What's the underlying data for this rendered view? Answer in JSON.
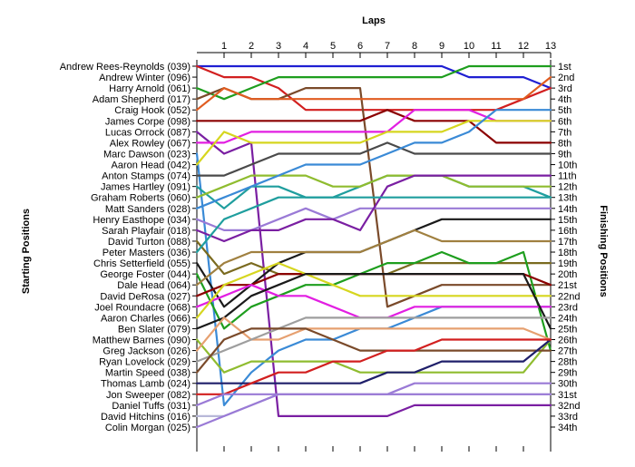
{
  "chart_data": {
    "type": "line",
    "title": "",
    "xlabel": "Laps",
    "ylabel_left": "Starting Positions",
    "ylabel_right": "Finishing Positions",
    "x": [
      0,
      1,
      2,
      3,
      4,
      5,
      6,
      7,
      8,
      9,
      10,
      11,
      12,
      13
    ],
    "x_tick_labels": [
      "1",
      "2",
      "3",
      "4",
      "5",
      "6",
      "7",
      "8",
      "9",
      "10",
      "11",
      "12",
      "13"
    ],
    "finishing_labels": [
      "1st",
      "2nd",
      "3rd",
      "4th",
      "5th",
      "6th",
      "7th",
      "8th",
      "9th",
      "10th",
      "11th",
      "12th",
      "13th",
      "14th",
      "15th",
      "16th",
      "17th",
      "18th",
      "19th",
      "20th",
      "21st",
      "22nd",
      "23rd",
      "24th",
      "25th",
      "26th",
      "27th",
      "28th",
      "29th",
      "30th",
      "31st",
      "32nd",
      "33rd",
      "34th"
    ],
    "ylim": [
      1,
      34
    ],
    "grid": false,
    "series": [
      {
        "name": "Andrew Rees-Reynolds (039)",
        "color": "#1f1fd2",
        "values": [
          1,
          1,
          1,
          1,
          1,
          1,
          1,
          1,
          1,
          1,
          2,
          2,
          2,
          3
        ]
      },
      {
        "name": "Andrew Winter (096)",
        "color": "#d21f1f",
        "values": [
          1,
          2,
          2,
          3,
          5,
          5,
          5,
          5,
          5,
          5,
          5,
          5,
          4,
          3
        ]
      },
      {
        "name": "Harry Arnold (061)",
        "color": "#1e9e1e",
        "values": [
          3,
          4,
          3,
          2,
          2,
          2,
          2,
          2,
          2,
          2,
          1,
          1,
          1,
          1
        ]
      },
      {
        "name": "Adam Shepherd (017)",
        "color": "#7a4a2a",
        "values": [
          4,
          3,
          4,
          4,
          3,
          3,
          3,
          23,
          22,
          21,
          21,
          21,
          21,
          21
        ]
      },
      {
        "name": "Craig Hook (052)",
        "color": "#e05c20",
        "values": [
          5,
          3,
          4,
          4,
          4,
          4,
          4,
          4,
          4,
          4,
          4,
          4,
          4,
          2
        ]
      },
      {
        "name": "James Corpe (098)",
        "color": "#8b0000",
        "values": [
          6,
          6,
          6,
          6,
          6,
          6,
          6,
          5,
          6,
          6,
          6,
          8,
          8,
          8
        ]
      },
      {
        "name": "Lucas Orrock (087)",
        "color": "#7a1fa2",
        "values": [
          7,
          9,
          8,
          33,
          33,
          33,
          33,
          33,
          32,
          32,
          32,
          32,
          32,
          32
        ]
      },
      {
        "name": "Alex Rowley (067)",
        "color": "#e21fe2",
        "values": [
          8,
          8,
          7,
          7,
          7,
          7,
          7,
          7,
          5,
          5,
          5,
          6,
          6,
          6
        ]
      },
      {
        "name": "Marc Dawson (023)",
        "color": "#3a8ad6",
        "values": [
          9,
          32,
          29,
          27,
          26,
          26,
          25,
          25,
          24,
          23,
          23,
          23,
          23,
          23
        ]
      },
      {
        "name": "Aaron Head (042)",
        "color": "#d6d61f",
        "values": [
          10,
          7,
          8,
          8,
          8,
          8,
          8,
          7,
          7,
          7,
          6,
          6,
          6,
          6
        ]
      },
      {
        "name": "Anton Stamps (074)",
        "color": "#4a4a4a",
        "values": [
          11,
          11,
          10,
          9,
          9,
          9,
          9,
          8,
          9,
          9,
          9,
          9,
          9,
          9
        ]
      },
      {
        "name": "James Hartley (091)",
        "color": "#1f9e9e",
        "values": [
          12,
          14,
          12,
          12,
          13,
          13,
          12,
          11,
          11,
          11,
          12,
          12,
          12,
          13
        ]
      },
      {
        "name": "Graham Roberts (060)",
        "color": "#8fbc2f",
        "values": [
          13,
          12,
          11,
          11,
          11,
          12,
          12,
          11,
          11,
          11,
          12,
          12,
          12,
          12
        ]
      },
      {
        "name": "Matt Sanders (028)",
        "color": "#3a8ad6",
        "values": [
          14,
          13,
          12,
          11,
          10,
          10,
          10,
          9,
          8,
          8,
          7,
          5,
          5,
          5
        ]
      },
      {
        "name": "Henry Easthope (034)",
        "color": "#9a7ad6",
        "values": [
          15,
          16,
          16,
          15,
          14,
          15,
          14,
          14,
          14,
          14,
          14,
          14,
          14,
          14
        ]
      },
      {
        "name": "Sarah Playfair (018)",
        "color": "#7a1fa2",
        "values": [
          16,
          17,
          16,
          16,
          15,
          15,
          16,
          12,
          11,
          11,
          11,
          11,
          11,
          11
        ]
      },
      {
        "name": "David Turton (088)",
        "color": "#7a6a1f",
        "values": [
          17,
          20,
          19,
          20,
          20,
          20,
          20,
          20,
          19,
          19,
          19,
          19,
          19,
          19
        ]
      },
      {
        "name": "Peter Masters (036)",
        "color": "#1f9e9e",
        "values": [
          18,
          15,
          14,
          13,
          13,
          13,
          13,
          13,
          13,
          13,
          13,
          13,
          13,
          13
        ]
      },
      {
        "name": "Chris Setterfield (055)",
        "color": "#1a1a1a",
        "values": [
          19,
          23,
          21,
          19,
          18,
          18,
          18,
          17,
          16,
          15,
          15,
          15,
          15,
          15
        ]
      },
      {
        "name": "George Foster (044)",
        "color": "#1e9e1e",
        "values": [
          20,
          25,
          23,
          22,
          21,
          21,
          20,
          19,
          19,
          18,
          19,
          19,
          18,
          27
        ]
      },
      {
        "name": "Dale Head (064)",
        "color": "#a08040",
        "values": [
          21,
          19,
          18,
          18,
          18,
          18,
          18,
          17,
          16,
          17,
          17,
          17,
          17,
          17
        ]
      },
      {
        "name": "David DeRosa (027)",
        "color": "#8b0000",
        "values": [
          22,
          21,
          21,
          20,
          20,
          20,
          20,
          20,
          20,
          20,
          20,
          20,
          20,
          21
        ]
      },
      {
        "name": "Joel Roundacre (068)",
        "color": "#e21fe2",
        "values": [
          23,
          22,
          21,
          22,
          22,
          23,
          24,
          24,
          23,
          23,
          23,
          23,
          23,
          23
        ]
      },
      {
        "name": "Aaron Charles (066)",
        "color": "#d6d61f",
        "values": [
          24,
          21,
          20,
          19,
          20,
          21,
          22,
          22,
          22,
          22,
          22,
          22,
          22,
          22
        ]
      },
      {
        "name": "Ben Slater (079)",
        "color": "#1a1a1a",
        "values": [
          25,
          24,
          22,
          21,
          20,
          20,
          20,
          20,
          20,
          20,
          20,
          20,
          20,
          25
        ]
      },
      {
        "name": "Matthew Barnes (090)",
        "color": "#8fbc2f",
        "values": [
          26,
          29,
          28,
          28,
          28,
          28,
          29,
          29,
          29,
          29,
          29,
          29,
          29,
          26
        ]
      },
      {
        "name": "Greg Jackson (026)",
        "color": "#e6a070",
        "values": [
          27,
          24,
          26,
          26,
          25,
          25,
          25,
          25,
          25,
          25,
          25,
          25,
          25,
          26
        ]
      },
      {
        "name": "Ryan Lovelock (029)",
        "color": "#9e9e9e",
        "values": [
          28,
          27,
          26,
          25,
          24,
          24,
          24,
          24,
          24,
          24,
          24,
          24,
          24,
          24
        ]
      },
      {
        "name": "Martin Speed (038)",
        "color": "#7a4a2a",
        "values": [
          29,
          26,
          25,
          25,
          25,
          26,
          27,
          27,
          27,
          27,
          27,
          27,
          27,
          27
        ]
      },
      {
        "name": "Thomas Lamb (024)",
        "color": "#1f1f6a",
        "values": [
          30,
          30,
          30,
          30,
          30,
          30,
          30,
          29,
          29,
          28,
          28,
          28,
          28,
          26
        ]
      },
      {
        "name": "Jon Sweeper (082)",
        "color": "#d21f1f",
        "values": [
          31,
          31,
          30,
          29,
          29,
          28,
          28,
          27,
          27,
          26,
          26,
          26,
          26,
          26
        ]
      },
      {
        "name": "Daniel Tuffs (031)",
        "color": "#9a7ad6",
        "values": [
          32,
          31,
          31,
          31,
          31,
          31,
          31,
          31,
          30,
          30,
          30,
          30,
          30,
          30
        ]
      },
      {
        "name": "David Hitchins (016)",
        "color": "#b8b8d8",
        "values": [
          33,
          33,
          32,
          31,
          31,
          31,
          31,
          31,
          31,
          31,
          31,
          31,
          31,
          31
        ]
      },
      {
        "name": "Colin Morgan (025)",
        "color": "#9a7ad6",
        "values": [
          34,
          33,
          32,
          31,
          31,
          31,
          31,
          31,
          31,
          31,
          31,
          31,
          31,
          31
        ]
      }
    ]
  }
}
